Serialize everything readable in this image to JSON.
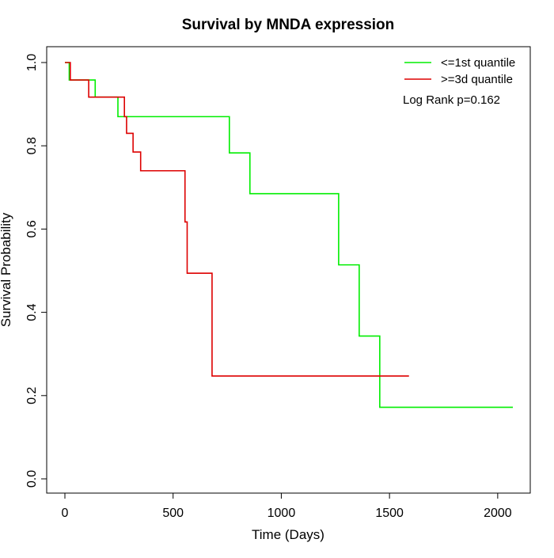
{
  "chart_data": {
    "type": "line",
    "title": "Survival by MNDA expression",
    "xlabel": "Time (Days)",
    "ylabel": "Survival Probability",
    "xlim": [
      0,
      2070
    ],
    "ylim": [
      0,
      1.0
    ],
    "x_ticks": [
      0,
      500,
      1000,
      1500,
      2000
    ],
    "y_ticks": [
      0.0,
      0.2,
      0.4,
      0.6,
      0.8,
      1.0
    ],
    "x_tick_labels": [
      "0",
      "500",
      "1000",
      "1500",
      "2000"
    ],
    "y_tick_labels": [
      "0.0",
      "0.2",
      "0.4",
      "0.6",
      "0.8",
      "1.0"
    ],
    "grid": false,
    "legend_position": "top-right",
    "annotation": "Log Rank p=0.162",
    "series": [
      {
        "name": "<=1st quantile",
        "color": "#00ee00",
        "step": true,
        "x": [
          0,
          20,
          140,
          245,
          760,
          855,
          1265,
          1360,
          1455,
          2070
        ],
        "y": [
          1.0,
          0.958,
          0.917,
          0.87,
          0.783,
          0.685,
          0.514,
          0.343,
          0.172,
          0.172
        ]
      },
      {
        "name": ">=3d quantile",
        "color": "#dd0000",
        "step": true,
        "x": [
          0,
          25,
          110,
          275,
          285,
          315,
          350,
          555,
          565,
          680,
          1590
        ],
        "y": [
          1.0,
          0.958,
          0.917,
          0.87,
          0.83,
          0.785,
          0.74,
          0.617,
          0.494,
          0.247,
          0.247
        ]
      }
    ]
  }
}
